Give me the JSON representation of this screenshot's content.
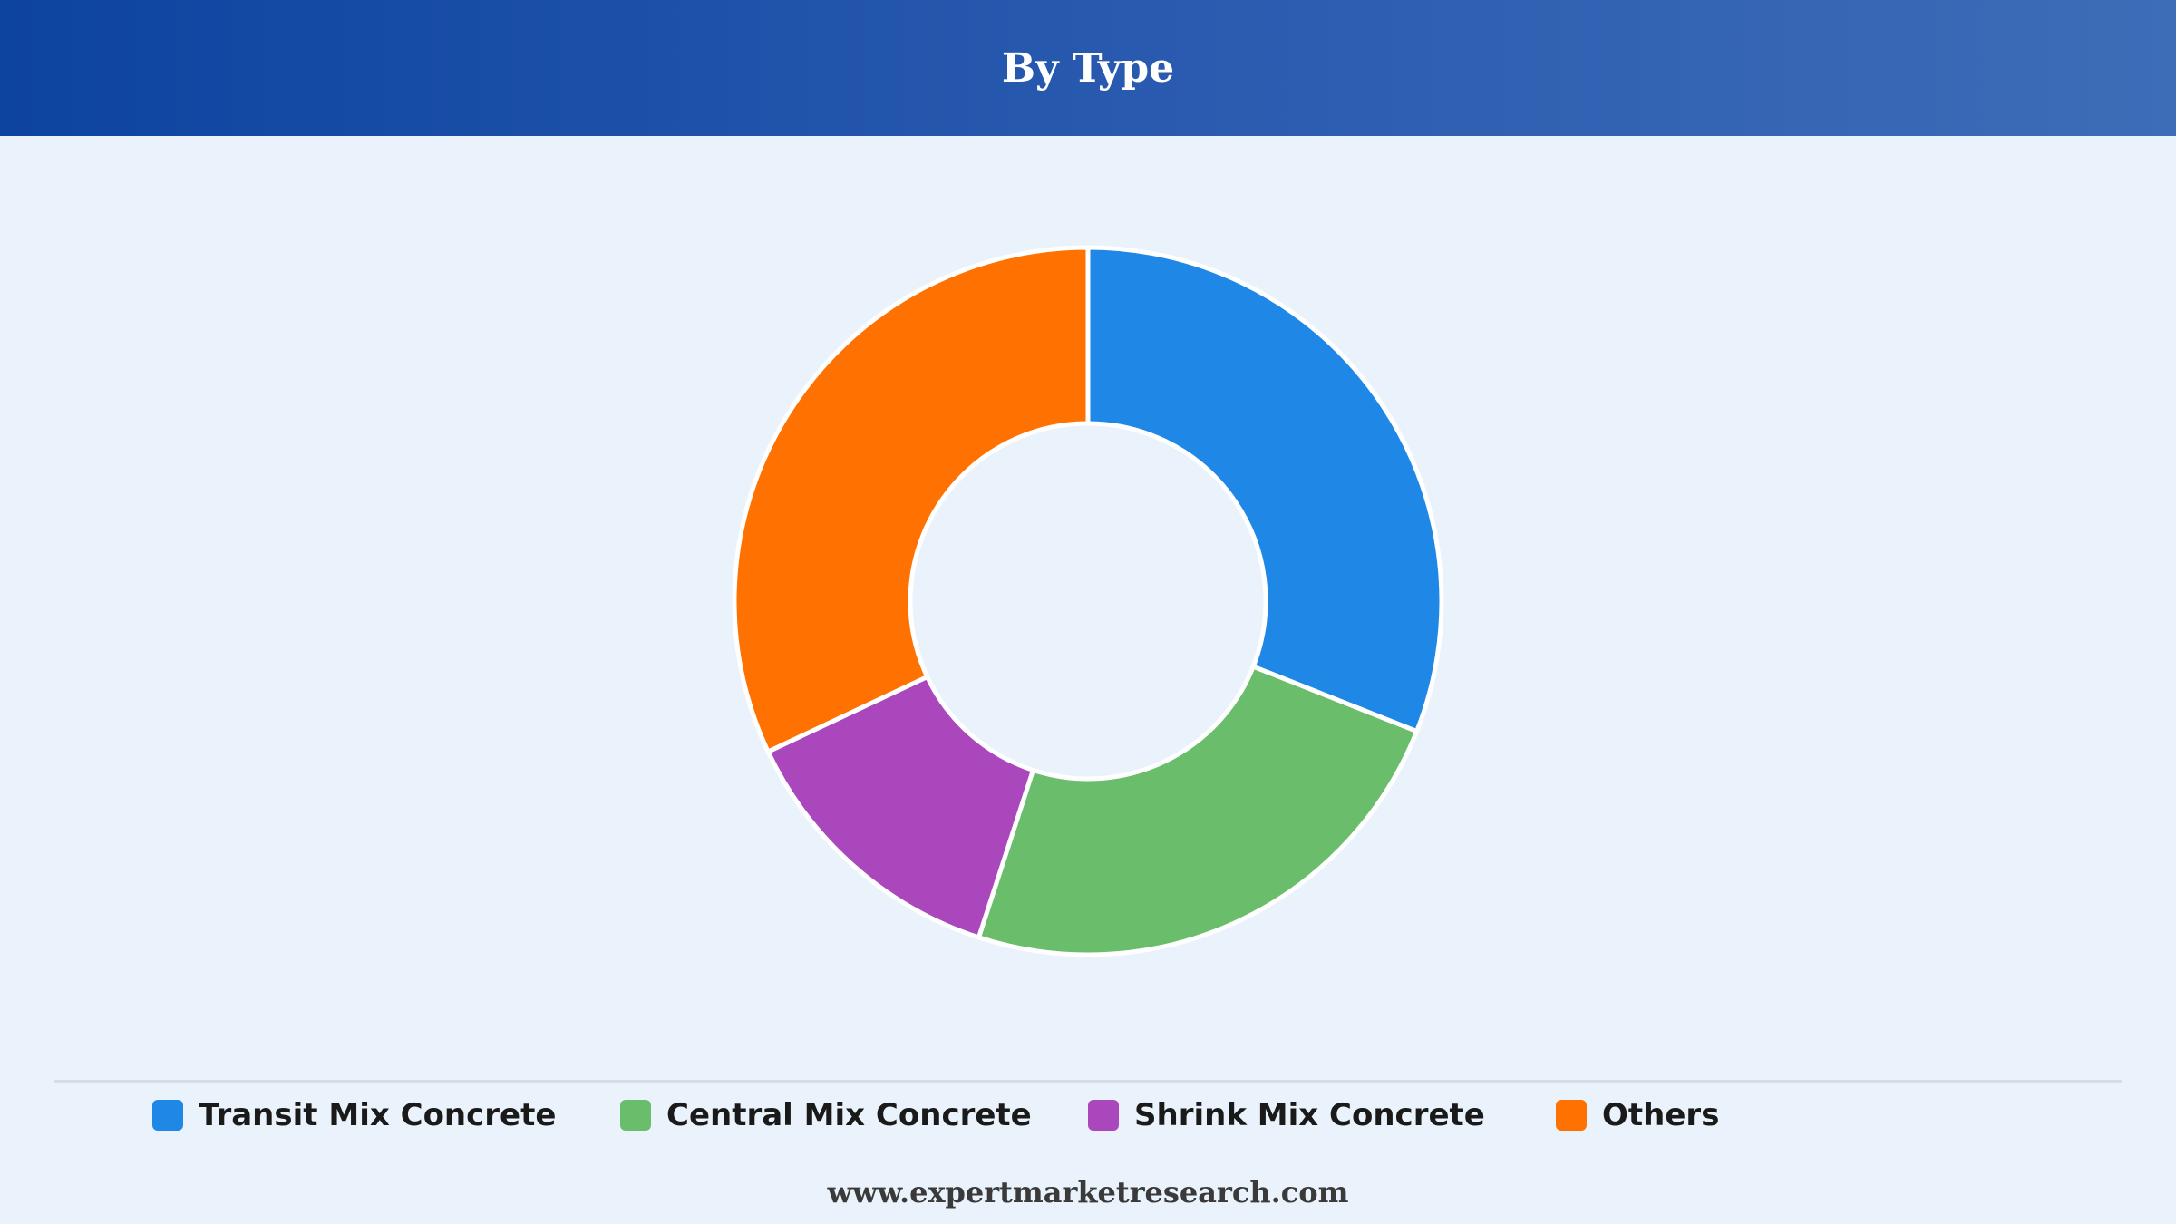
{
  "header": {
    "title": "By Type",
    "background_start": "#0d44a0",
    "background_end": "#3d6db7"
  },
  "chart_data": {
    "type": "pie",
    "donut": true,
    "title": "By Type",
    "categories": [
      "Transit Mix Concrete",
      "Central Mix Concrete",
      "Shrink Mix Concrete",
      "Others"
    ],
    "values": [
      31,
      24,
      13,
      32
    ],
    "unit": "%",
    "colors": [
      "#1f87e5",
      "#6abd6b",
      "#ab47bc",
      "#ff7100"
    ],
    "legend": "bottom",
    "start": "12 o'clock, clockwise"
  },
  "legend": {
    "items": [
      {
        "label": "Transit Mix Concrete",
        "color": "#1f87e5"
      },
      {
        "label": "Central Mix Concrete",
        "color": "#6abd6b"
      },
      {
        "label": "Shrink Mix Concrete",
        "color": "#ab47bc"
      },
      {
        "label": "Others",
        "color": "#ff7100"
      }
    ]
  },
  "footer": {
    "source": "www.expertmarketresearch.com"
  }
}
